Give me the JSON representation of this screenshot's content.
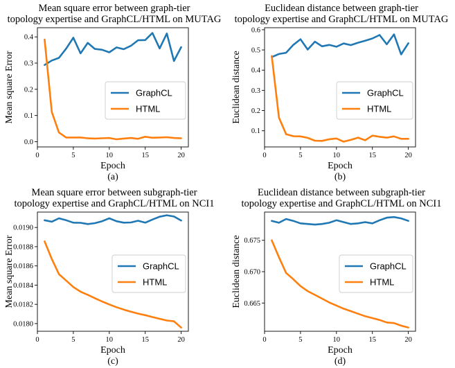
{
  "colors": {
    "GraphCL": "#1f77b4",
    "HTML": "#ff7f0e"
  },
  "chart_data": [
    {
      "type": "line",
      "title": [
        "Mean square error between graph-tier",
        "topology expertise and GraphCL/HTML on MUTAG"
      ],
      "xlabel": "Epoch",
      "ylabel": "Mean square Error",
      "caption": "(a)",
      "xlim": [
        0,
        21
      ],
      "ylim": [
        -0.02,
        0.435
      ],
      "xticks": [
        0,
        5,
        10,
        15,
        20
      ],
      "xtick_labels": [
        "0",
        "5",
        "10",
        "15",
        "20"
      ],
      "yticks": [
        0.0,
        0.1,
        0.2,
        0.3,
        0.4
      ],
      "ytick_labels": [
        "0.0",
        "0.1",
        "0.2",
        "0.3",
        "0.4"
      ],
      "legend_position": "center-right",
      "grid": false,
      "x": [
        1,
        2,
        3,
        4,
        5,
        6,
        7,
        8,
        9,
        10,
        11,
        12,
        13,
        14,
        15,
        16,
        17,
        18,
        19,
        20
      ],
      "series": [
        {
          "name": "GraphCL",
          "values": [
            0.293,
            0.31,
            0.32,
            0.355,
            0.397,
            0.337,
            0.377,
            0.354,
            0.351,
            0.341,
            0.36,
            0.353,
            0.366,
            0.387,
            0.388,
            0.415,
            0.356,
            0.413,
            0.308,
            0.361
          ]
        },
        {
          "name": "HTML",
          "values": [
            0.39,
            0.113,
            0.035,
            0.016,
            0.016,
            0.016,
            0.013,
            0.012,
            0.013,
            0.014,
            0.009,
            0.012,
            0.014,
            0.011,
            0.019,
            0.015,
            0.016,
            0.017,
            0.014,
            0.013
          ]
        }
      ]
    },
    {
      "type": "line",
      "title": [
        "Euclidean distance between graph-tier",
        "topology expertise and GraphCL/HTML on MUTAG"
      ],
      "xlabel": "Epoch",
      "ylabel": "Euclidean distance",
      "caption": "(b)",
      "xlim": [
        0,
        21
      ],
      "ylim": [
        0.02,
        0.61
      ],
      "xticks": [
        0,
        5,
        10,
        15,
        20
      ],
      "xtick_labels": [
        "0",
        "5",
        "10",
        "15",
        "20"
      ],
      "yticks": [
        0.1,
        0.2,
        0.3,
        0.4,
        0.5,
        0.6
      ],
      "ytick_labels": [
        "0.1",
        "0.2",
        "0.3",
        "0.4",
        "0.5",
        "0.6"
      ],
      "legend_position": "center-right",
      "grid": false,
      "x": [
        1,
        2,
        3,
        4,
        5,
        6,
        7,
        8,
        9,
        10,
        11,
        12,
        13,
        14,
        15,
        16,
        17,
        18,
        19,
        20
      ],
      "series": [
        {
          "name": "GraphCL",
          "values": [
            0.465,
            0.48,
            0.486,
            0.525,
            0.553,
            0.502,
            0.541,
            0.518,
            0.525,
            0.516,
            0.532,
            0.524,
            0.536,
            0.546,
            0.557,
            0.574,
            0.528,
            0.577,
            0.478,
            0.533
          ]
        },
        {
          "name": "HTML",
          "values": [
            0.47,
            0.165,
            0.083,
            0.073,
            0.072,
            0.065,
            0.051,
            0.05,
            0.058,
            0.062,
            0.046,
            0.055,
            0.066,
            0.053,
            0.076,
            0.07,
            0.066,
            0.072,
            0.06,
            0.06
          ]
        }
      ]
    },
    {
      "type": "line",
      "title": [
        "Mean square error between subgraph-tier",
        "topology expertise and GraphCL/HTML on NCI1"
      ],
      "xlabel": "Epoch",
      "ylabel": "Mean square Error",
      "caption": "(c)",
      "xlim": [
        0,
        21
      ],
      "ylim": [
        0.01792,
        0.01916
      ],
      "xticks": [
        0,
        5,
        10,
        15,
        20
      ],
      "xtick_labels": [
        "0",
        "5",
        "10",
        "15",
        "20"
      ],
      "yticks": [
        0.018,
        0.0182,
        0.0184,
        0.0186,
        0.0188,
        0.019
      ],
      "ytick_labels": [
        "0.0180",
        "0.0182",
        "0.0184",
        "0.0186",
        "0.0188",
        "0.0190"
      ],
      "legend_position": "center-right",
      "grid": false,
      "x": [
        1,
        2,
        3,
        4,
        5,
        6,
        7,
        8,
        9,
        10,
        11,
        12,
        13,
        14,
        15,
        16,
        17,
        18,
        19,
        20
      ],
      "series": [
        {
          "name": "GraphCL",
          "values": [
            0.019075,
            0.01906,
            0.019095,
            0.019075,
            0.01905,
            0.019048,
            0.019035,
            0.019045,
            0.019065,
            0.019095,
            0.019065,
            0.01905,
            0.019052,
            0.01907,
            0.01905,
            0.019082,
            0.019112,
            0.019127,
            0.019114,
            0.019072
          ]
        },
        {
          "name": "HTML",
          "values": [
            0.018855,
            0.018672,
            0.018514,
            0.018448,
            0.01838,
            0.018332,
            0.018299,
            0.018264,
            0.01823,
            0.018199,
            0.01817,
            0.018146,
            0.018123,
            0.018104,
            0.018087,
            0.018068,
            0.01805,
            0.018032,
            0.018024,
            0.017958
          ]
        }
      ]
    },
    {
      "type": "line",
      "title": [
        "Euclidean distance between subgraph-tier",
        "topology expertise and GraphCL/HTML on NCI1"
      ],
      "xlabel": "Epoch",
      "ylabel": "Euclidean distance",
      "caption": "(d)",
      "xlim": [
        0,
        21
      ],
      "ylim": [
        0.6605,
        0.6795
      ],
      "xticks": [
        0,
        5,
        10,
        15,
        20
      ],
      "xtick_labels": [
        "0",
        "5",
        "10",
        "15",
        "20"
      ],
      "yticks": [
        0.665,
        0.67,
        0.675
      ],
      "ytick_labels": [
        "0.665",
        "0.670",
        "0.675"
      ],
      "legend_position": "center-right",
      "grid": false,
      "x": [
        1,
        2,
        3,
        4,
        5,
        6,
        7,
        8,
        9,
        10,
        11,
        12,
        13,
        14,
        15,
        16,
        17,
        18,
        19,
        20
      ],
      "series": [
        {
          "name": "GraphCL",
          "values": [
            0.6781,
            0.6778,
            0.6784,
            0.6781,
            0.6777,
            0.6776,
            0.6775,
            0.6776,
            0.6778,
            0.6782,
            0.6779,
            0.6776,
            0.6777,
            0.6779,
            0.6777,
            0.6782,
            0.6786,
            0.6787,
            0.6785,
            0.6781
          ]
        },
        {
          "name": "HTML",
          "values": [
            0.675,
            0.6723,
            0.6698,
            0.6688,
            0.6677,
            0.6669,
            0.6663,
            0.6657,
            0.6651,
            0.6646,
            0.6641,
            0.6637,
            0.6633,
            0.6629,
            0.6626,
            0.6623,
            0.6619,
            0.6618,
            0.6614,
            0.6611
          ]
        }
      ]
    }
  ]
}
